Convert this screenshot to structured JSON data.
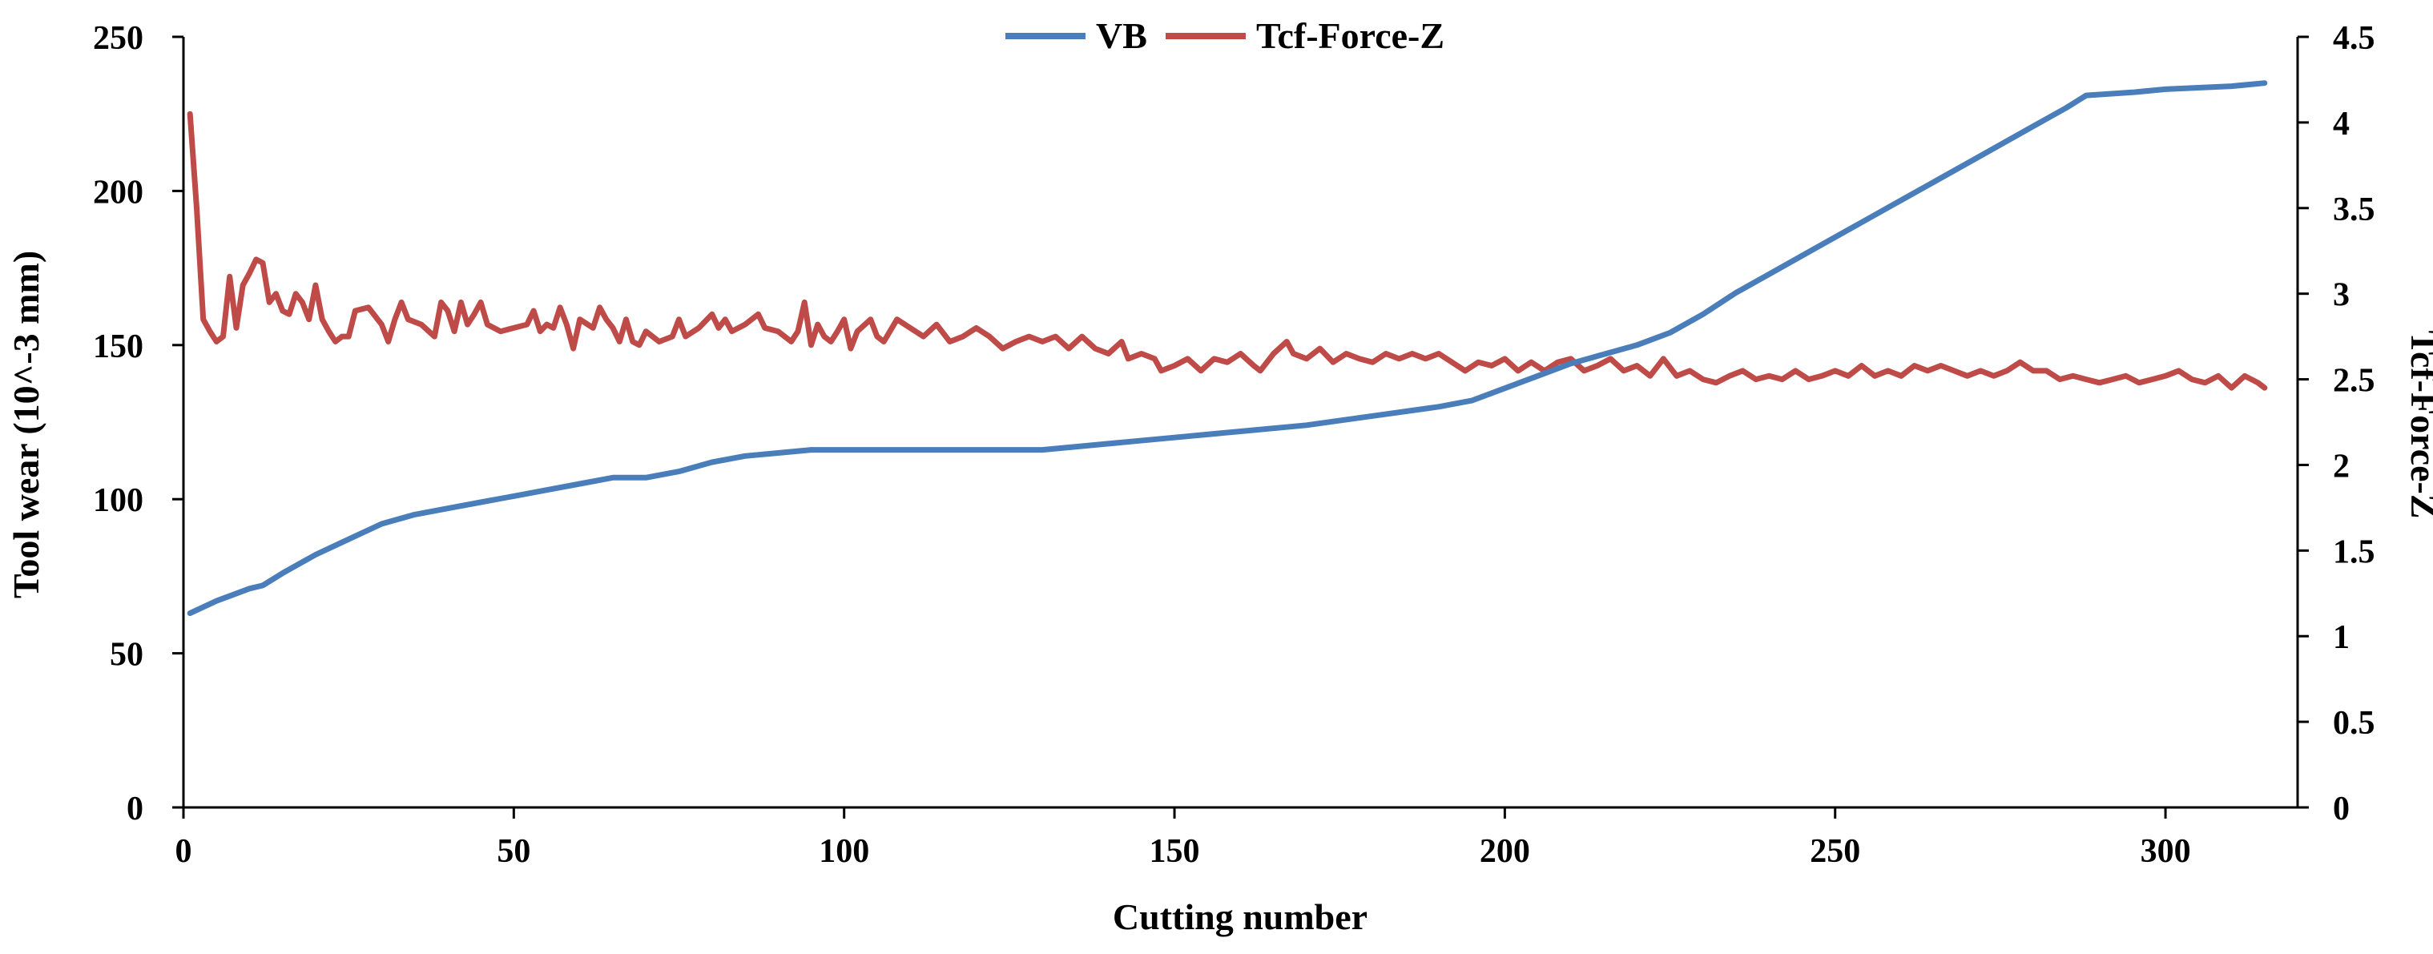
{
  "chart_data": {
    "type": "line",
    "title": "",
    "xlabel": "Cutting number",
    "ylabel": "Tool wear (10^-3 mm)",
    "y2label": "Tcf-Force-Z",
    "xlim": [
      0,
      320
    ],
    "ylim": [
      0,
      250
    ],
    "y2lim": [
      0,
      4.5
    ],
    "x_ticks": [
      "0",
      "50",
      "100",
      "150",
      "200",
      "250",
      "300"
    ],
    "y_ticks": [
      "0",
      "50",
      "100",
      "150",
      "200",
      "250"
    ],
    "y2_ticks": [
      "0",
      "0.5",
      "1",
      "1.5",
      "2",
      "2.5",
      "3",
      "3.5",
      "4",
      "4.5"
    ],
    "legend_position": "top",
    "legend": [
      "VB",
      "Tcf-Force-Z"
    ],
    "colors": {
      "VB": "#4a7ebb",
      "Tcf-Force-Z": "#be4b48"
    },
    "series": [
      {
        "name": "VB",
        "axis": "left",
        "points": [
          [
            1,
            63
          ],
          [
            5,
            67
          ],
          [
            10,
            71
          ],
          [
            12,
            72
          ],
          [
            15,
            76
          ],
          [
            20,
            82
          ],
          [
            25,
            87
          ],
          [
            30,
            92
          ],
          [
            35,
            95
          ],
          [
            40,
            97
          ],
          [
            45,
            99
          ],
          [
            50,
            101
          ],
          [
            55,
            103
          ],
          [
            60,
            105
          ],
          [
            65,
            107
          ],
          [
            70,
            107
          ],
          [
            75,
            109
          ],
          [
            80,
            112
          ],
          [
            85,
            114
          ],
          [
            90,
            115
          ],
          [
            95,
            116
          ],
          [
            100,
            116
          ],
          [
            110,
            116
          ],
          [
            120,
            116
          ],
          [
            130,
            116
          ],
          [
            140,
            118
          ],
          [
            150,
            120
          ],
          [
            160,
            122
          ],
          [
            170,
            124
          ],
          [
            180,
            127
          ],
          [
            190,
            130
          ],
          [
            195,
            132
          ],
          [
            200,
            136
          ],
          [
            205,
            140
          ],
          [
            210,
            144
          ],
          [
            215,
            147
          ],
          [
            220,
            150
          ],
          [
            225,
            154
          ],
          [
            230,
            160
          ],
          [
            235,
            167
          ],
          [
            240,
            173
          ],
          [
            245,
            179
          ],
          [
            250,
            185
          ],
          [
            255,
            191
          ],
          [
            260,
            197
          ],
          [
            265,
            203
          ],
          [
            270,
            209
          ],
          [
            275,
            215
          ],
          [
            280,
            221
          ],
          [
            285,
            227
          ],
          [
            288,
            231
          ],
          [
            295,
            232
          ],
          [
            300,
            233
          ],
          [
            310,
            234
          ],
          [
            315,
            235
          ]
        ]
      },
      {
        "name": "Tcf-Force-Z",
        "axis": "right",
        "points": [
          [
            1,
            4.05
          ],
          [
            2,
            3.5
          ],
          [
            3,
            2.85
          ],
          [
            4,
            2.78
          ],
          [
            5,
            2.72
          ],
          [
            6,
            2.75
          ],
          [
            7,
            3.1
          ],
          [
            8,
            2.8
          ],
          [
            9,
            3.05
          ],
          [
            10,
            3.12
          ],
          [
            11,
            3.2
          ],
          [
            12,
            3.18
          ],
          [
            13,
            2.95
          ],
          [
            14,
            3.0
          ],
          [
            15,
            2.9
          ],
          [
            16,
            2.88
          ],
          [
            17,
            3.0
          ],
          [
            18,
            2.95
          ],
          [
            19,
            2.85
          ],
          [
            20,
            3.05
          ],
          [
            21,
            2.85
          ],
          [
            22,
            2.78
          ],
          [
            23,
            2.72
          ],
          [
            24,
            2.75
          ],
          [
            25,
            2.75
          ],
          [
            26,
            2.9
          ],
          [
            28,
            2.92
          ],
          [
            30,
            2.82
          ],
          [
            31,
            2.72
          ],
          [
            32,
            2.85
          ],
          [
            33,
            2.95
          ],
          [
            34,
            2.85
          ],
          [
            36,
            2.82
          ],
          [
            38,
            2.75
          ],
          [
            39,
            2.95
          ],
          [
            40,
            2.9
          ],
          [
            41,
            2.78
          ],
          [
            42,
            2.95
          ],
          [
            43,
            2.82
          ],
          [
            44,
            2.88
          ],
          [
            45,
            2.95
          ],
          [
            46,
            2.82
          ],
          [
            48,
            2.78
          ],
          [
            50,
            2.8
          ],
          [
            52,
            2.82
          ],
          [
            53,
            2.9
          ],
          [
            54,
            2.78
          ],
          [
            55,
            2.82
          ],
          [
            56,
            2.8
          ],
          [
            57,
            2.92
          ],
          [
            58,
            2.82
          ],
          [
            59,
            2.68
          ],
          [
            60,
            2.85
          ],
          [
            62,
            2.8
          ],
          [
            63,
            2.92
          ],
          [
            64,
            2.85
          ],
          [
            65,
            2.8
          ],
          [
            66,
            2.72
          ],
          [
            67,
            2.85
          ],
          [
            68,
            2.72
          ],
          [
            69,
            2.7
          ],
          [
            70,
            2.78
          ],
          [
            72,
            2.72
          ],
          [
            74,
            2.75
          ],
          [
            75,
            2.85
          ],
          [
            76,
            2.75
          ],
          [
            78,
            2.8
          ],
          [
            80,
            2.88
          ],
          [
            81,
            2.8
          ],
          [
            82,
            2.85
          ],
          [
            83,
            2.78
          ],
          [
            85,
            2.82
          ],
          [
            87,
            2.88
          ],
          [
            88,
            2.8
          ],
          [
            90,
            2.78
          ],
          [
            92,
            2.72
          ],
          [
            93,
            2.78
          ],
          [
            94,
            2.95
          ],
          [
            95,
            2.7
          ],
          [
            96,
            2.82
          ],
          [
            97,
            2.75
          ],
          [
            98,
            2.72
          ],
          [
            99,
            2.78
          ],
          [
            100,
            2.85
          ],
          [
            101,
            2.68
          ],
          [
            102,
            2.78
          ],
          [
            104,
            2.85
          ],
          [
            105,
            2.75
          ],
          [
            106,
            2.72
          ],
          [
            108,
            2.85
          ],
          [
            110,
            2.8
          ],
          [
            112,
            2.75
          ],
          [
            114,
            2.82
          ],
          [
            116,
            2.72
          ],
          [
            118,
            2.75
          ],
          [
            120,
            2.8
          ],
          [
            122,
            2.75
          ],
          [
            124,
            2.68
          ],
          [
            126,
            2.72
          ],
          [
            128,
            2.75
          ],
          [
            130,
            2.72
          ],
          [
            132,
            2.75
          ],
          [
            134,
            2.68
          ],
          [
            136,
            2.75
          ],
          [
            138,
            2.68
          ],
          [
            140,
            2.65
          ],
          [
            142,
            2.72
          ],
          [
            143,
            2.62
          ],
          [
            145,
            2.65
          ],
          [
            147,
            2.62
          ],
          [
            148,
            2.55
          ],
          [
            150,
            2.58
          ],
          [
            152,
            2.62
          ],
          [
            154,
            2.55
          ],
          [
            156,
            2.62
          ],
          [
            158,
            2.6
          ],
          [
            160,
            2.65
          ],
          [
            162,
            2.58
          ],
          [
            163,
            2.55
          ],
          [
            165,
            2.65
          ],
          [
            167,
            2.72
          ],
          [
            168,
            2.65
          ],
          [
            170,
            2.62
          ],
          [
            172,
            2.68
          ],
          [
            174,
            2.6
          ],
          [
            176,
            2.65
          ],
          [
            178,
            2.62
          ],
          [
            180,
            2.6
          ],
          [
            182,
            2.65
          ],
          [
            184,
            2.62
          ],
          [
            186,
            2.65
          ],
          [
            188,
            2.62
          ],
          [
            190,
            2.65
          ],
          [
            192,
            2.6
          ],
          [
            194,
            2.55
          ],
          [
            196,
            2.6
          ],
          [
            198,
            2.58
          ],
          [
            200,
            2.62
          ],
          [
            202,
            2.55
          ],
          [
            204,
            2.6
          ],
          [
            206,
            2.55
          ],
          [
            208,
            2.6
          ],
          [
            210,
            2.62
          ],
          [
            212,
            2.55
          ],
          [
            214,
            2.58
          ],
          [
            216,
            2.62
          ],
          [
            218,
            2.55
          ],
          [
            220,
            2.58
          ],
          [
            222,
            2.52
          ],
          [
            224,
            2.62
          ],
          [
            226,
            2.52
          ],
          [
            228,
            2.55
          ],
          [
            230,
            2.5
          ],
          [
            232,
            2.48
          ],
          [
            234,
            2.52
          ],
          [
            236,
            2.55
          ],
          [
            238,
            2.5
          ],
          [
            240,
            2.52
          ],
          [
            242,
            2.5
          ],
          [
            244,
            2.55
          ],
          [
            246,
            2.5
          ],
          [
            248,
            2.52
          ],
          [
            250,
            2.55
          ],
          [
            252,
            2.52
          ],
          [
            254,
            2.58
          ],
          [
            256,
            2.52
          ],
          [
            258,
            2.55
          ],
          [
            260,
            2.52
          ],
          [
            262,
            2.58
          ],
          [
            264,
            2.55
          ],
          [
            266,
            2.58
          ],
          [
            268,
            2.55
          ],
          [
            270,
            2.52
          ],
          [
            272,
            2.55
          ],
          [
            274,
            2.52
          ],
          [
            276,
            2.55
          ],
          [
            278,
            2.6
          ],
          [
            280,
            2.55
          ],
          [
            282,
            2.55
          ],
          [
            284,
            2.5
          ],
          [
            286,
            2.52
          ],
          [
            288,
            2.5
          ],
          [
            290,
            2.48
          ],
          [
            292,
            2.5
          ],
          [
            294,
            2.52
          ],
          [
            296,
            2.48
          ],
          [
            298,
            2.5
          ],
          [
            300,
            2.52
          ],
          [
            302,
            2.55
          ],
          [
            304,
            2.5
          ],
          [
            306,
            2.48
          ],
          [
            308,
            2.52
          ],
          [
            310,
            2.45
          ],
          [
            312,
            2.52
          ],
          [
            314,
            2.48
          ],
          [
            315,
            2.45
          ]
        ]
      }
    ]
  }
}
